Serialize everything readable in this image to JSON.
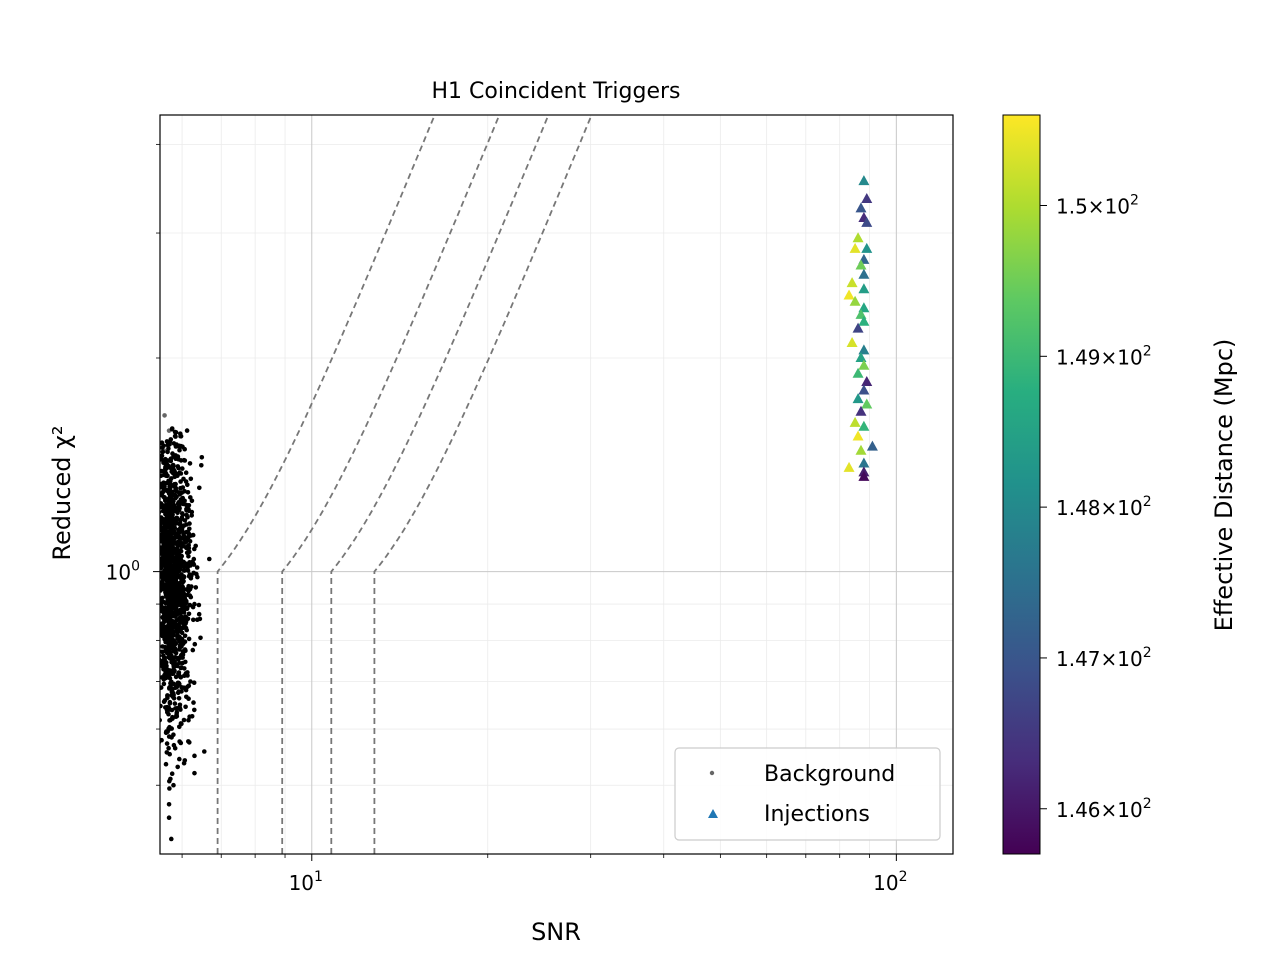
{
  "chart_data": {
    "type": "scatter",
    "title": "H1 Coincident Triggers",
    "xlabel": "SNR",
    "ylabel": "Reduced χ²",
    "xscale": "log",
    "yscale": "log",
    "xlim": [
      5.5,
      125
    ],
    "ylim": [
      0.4,
      4.4
    ],
    "x_ticks": [
      {
        "value": 10,
        "label": "10",
        "exp": "1"
      },
      {
        "value": 100,
        "label": "10",
        "exp": "2"
      }
    ],
    "y_ticks": [
      {
        "value": 1,
        "label": "10",
        "exp": "0"
      }
    ],
    "grid": true,
    "legend": {
      "placement": "lower-right",
      "entries": [
        {
          "label": "Background",
          "marker": "dot",
          "color": "#666666"
        },
        {
          "label": "Injections",
          "marker": "triangle",
          "color": "#1f77b4"
        }
      ]
    },
    "colorbar": {
      "label": "Effective Distance (Mpc)",
      "colormap": "viridis",
      "range": [
        145.7,
        150.6
      ],
      "ticks": [
        {
          "value": 146,
          "mantissa": "1.46",
          "exp": "2"
        },
        {
          "value": 147,
          "mantissa": "1.47",
          "exp": "2"
        },
        {
          "value": 148,
          "mantissa": "1.48",
          "exp": "2"
        },
        {
          "value": 149,
          "mantissa": "1.49",
          "exp": "2"
        },
        {
          "value": 150,
          "mantissa": "1.5",
          "exp": "2"
        }
      ]
    },
    "threshold_curves": [
      {
        "snr_at_knee": 6.9
      },
      {
        "snr_at_knee": 8.9
      },
      {
        "snr_at_knee": 10.8
      },
      {
        "snr_at_knee": 12.8
      }
    ],
    "background_sample": [
      {
        "snr": 5.6,
        "chi2": 1.66
      },
      {
        "snr": 5.7,
        "chi2": 1.58
      },
      {
        "snr": 5.6,
        "chi2": 1.48
      },
      {
        "snr": 5.8,
        "chi2": 1.41
      },
      {
        "snr": 5.65,
        "chi2": 1.3
      },
      {
        "snr": 5.9,
        "chi2": 1.22
      },
      {
        "snr": 6.0,
        "chi2": 1.15
      },
      {
        "snr": 6.1,
        "chi2": 1.08
      },
      {
        "snr": 6.2,
        "chi2": 1.02
      },
      {
        "snr": 5.6,
        "chi2": 0.95
      },
      {
        "snr": 6.3,
        "chi2": 0.9
      },
      {
        "snr": 6.0,
        "chi2": 0.82
      },
      {
        "snr": 5.8,
        "chi2": 0.75
      },
      {
        "snr": 6.2,
        "chi2": 0.7
      },
      {
        "snr": 6.3,
        "chi2": 0.55
      },
      {
        "snr": 6.3,
        "chi2": 0.52
      },
      {
        "snr": 5.8,
        "chi2": 0.5
      },
      {
        "snr": 5.7,
        "chi2": 0.47
      },
      {
        "snr": 5.7,
        "chi2": 0.45
      },
      {
        "snr": 5.75,
        "chi2": 0.42
      }
    ],
    "injections": [
      {
        "snr": 88,
        "chi2": 3.55,
        "dist": 148.0
      },
      {
        "snr": 89,
        "chi2": 3.35,
        "dist": 146.5
      },
      {
        "snr": 87,
        "chi2": 3.25,
        "dist": 147.0
      },
      {
        "snr": 88,
        "chi2": 3.15,
        "dist": 146.3
      },
      {
        "snr": 89,
        "chi2": 3.1,
        "dist": 146.8
      },
      {
        "snr": 86,
        "chi2": 2.95,
        "dist": 150.0
      },
      {
        "snr": 89,
        "chi2": 2.85,
        "dist": 148.2
      },
      {
        "snr": 85,
        "chi2": 2.85,
        "dist": 150.4
      },
      {
        "snr": 88,
        "chi2": 2.75,
        "dist": 147.3
      },
      {
        "snr": 87,
        "chi2": 2.7,
        "dist": 149.5
      },
      {
        "snr": 88,
        "chi2": 2.62,
        "dist": 147.5
      },
      {
        "snr": 84,
        "chi2": 2.55,
        "dist": 150.2
      },
      {
        "snr": 88,
        "chi2": 2.5,
        "dist": 148.4
      },
      {
        "snr": 83,
        "chi2": 2.45,
        "dist": 150.5
      },
      {
        "snr": 85,
        "chi2": 2.4,
        "dist": 149.8
      },
      {
        "snr": 88,
        "chi2": 2.35,
        "dist": 148.6
      },
      {
        "snr": 87,
        "chi2": 2.3,
        "dist": 149.2
      },
      {
        "snr": 88,
        "chi2": 2.25,
        "dist": 148.8
      },
      {
        "snr": 86,
        "chi2": 2.2,
        "dist": 146.7
      },
      {
        "snr": 84,
        "chi2": 2.1,
        "dist": 150.3
      },
      {
        "snr": 88,
        "chi2": 2.05,
        "dist": 147.8
      },
      {
        "snr": 87,
        "chi2": 2.0,
        "dist": 148.5
      },
      {
        "snr": 88,
        "chi2": 1.95,
        "dist": 149.6
      },
      {
        "snr": 86,
        "chi2": 1.9,
        "dist": 149.0
      },
      {
        "snr": 89,
        "chi2": 1.85,
        "dist": 146.2
      },
      {
        "snr": 88,
        "chi2": 1.8,
        "dist": 146.9
      },
      {
        "snr": 86,
        "chi2": 1.75,
        "dist": 148.3
      },
      {
        "snr": 89,
        "chi2": 1.72,
        "dist": 149.4
      },
      {
        "snr": 87,
        "chi2": 1.68,
        "dist": 146.4
      },
      {
        "snr": 85,
        "chi2": 1.62,
        "dist": 150.1
      },
      {
        "snr": 88,
        "chi2": 1.6,
        "dist": 148.9
      },
      {
        "snr": 86,
        "chi2": 1.55,
        "dist": 150.5
      },
      {
        "snr": 91,
        "chi2": 1.5,
        "dist": 147.2
      },
      {
        "snr": 87,
        "chi2": 1.48,
        "dist": 149.9
      },
      {
        "snr": 88,
        "chi2": 1.42,
        "dist": 147.6
      },
      {
        "snr": 83,
        "chi2": 1.4,
        "dist": 150.4
      },
      {
        "snr": 88,
        "chi2": 1.38,
        "dist": 146.1
      },
      {
        "snr": 88,
        "chi2": 1.36,
        "dist": 145.8
      }
    ]
  }
}
